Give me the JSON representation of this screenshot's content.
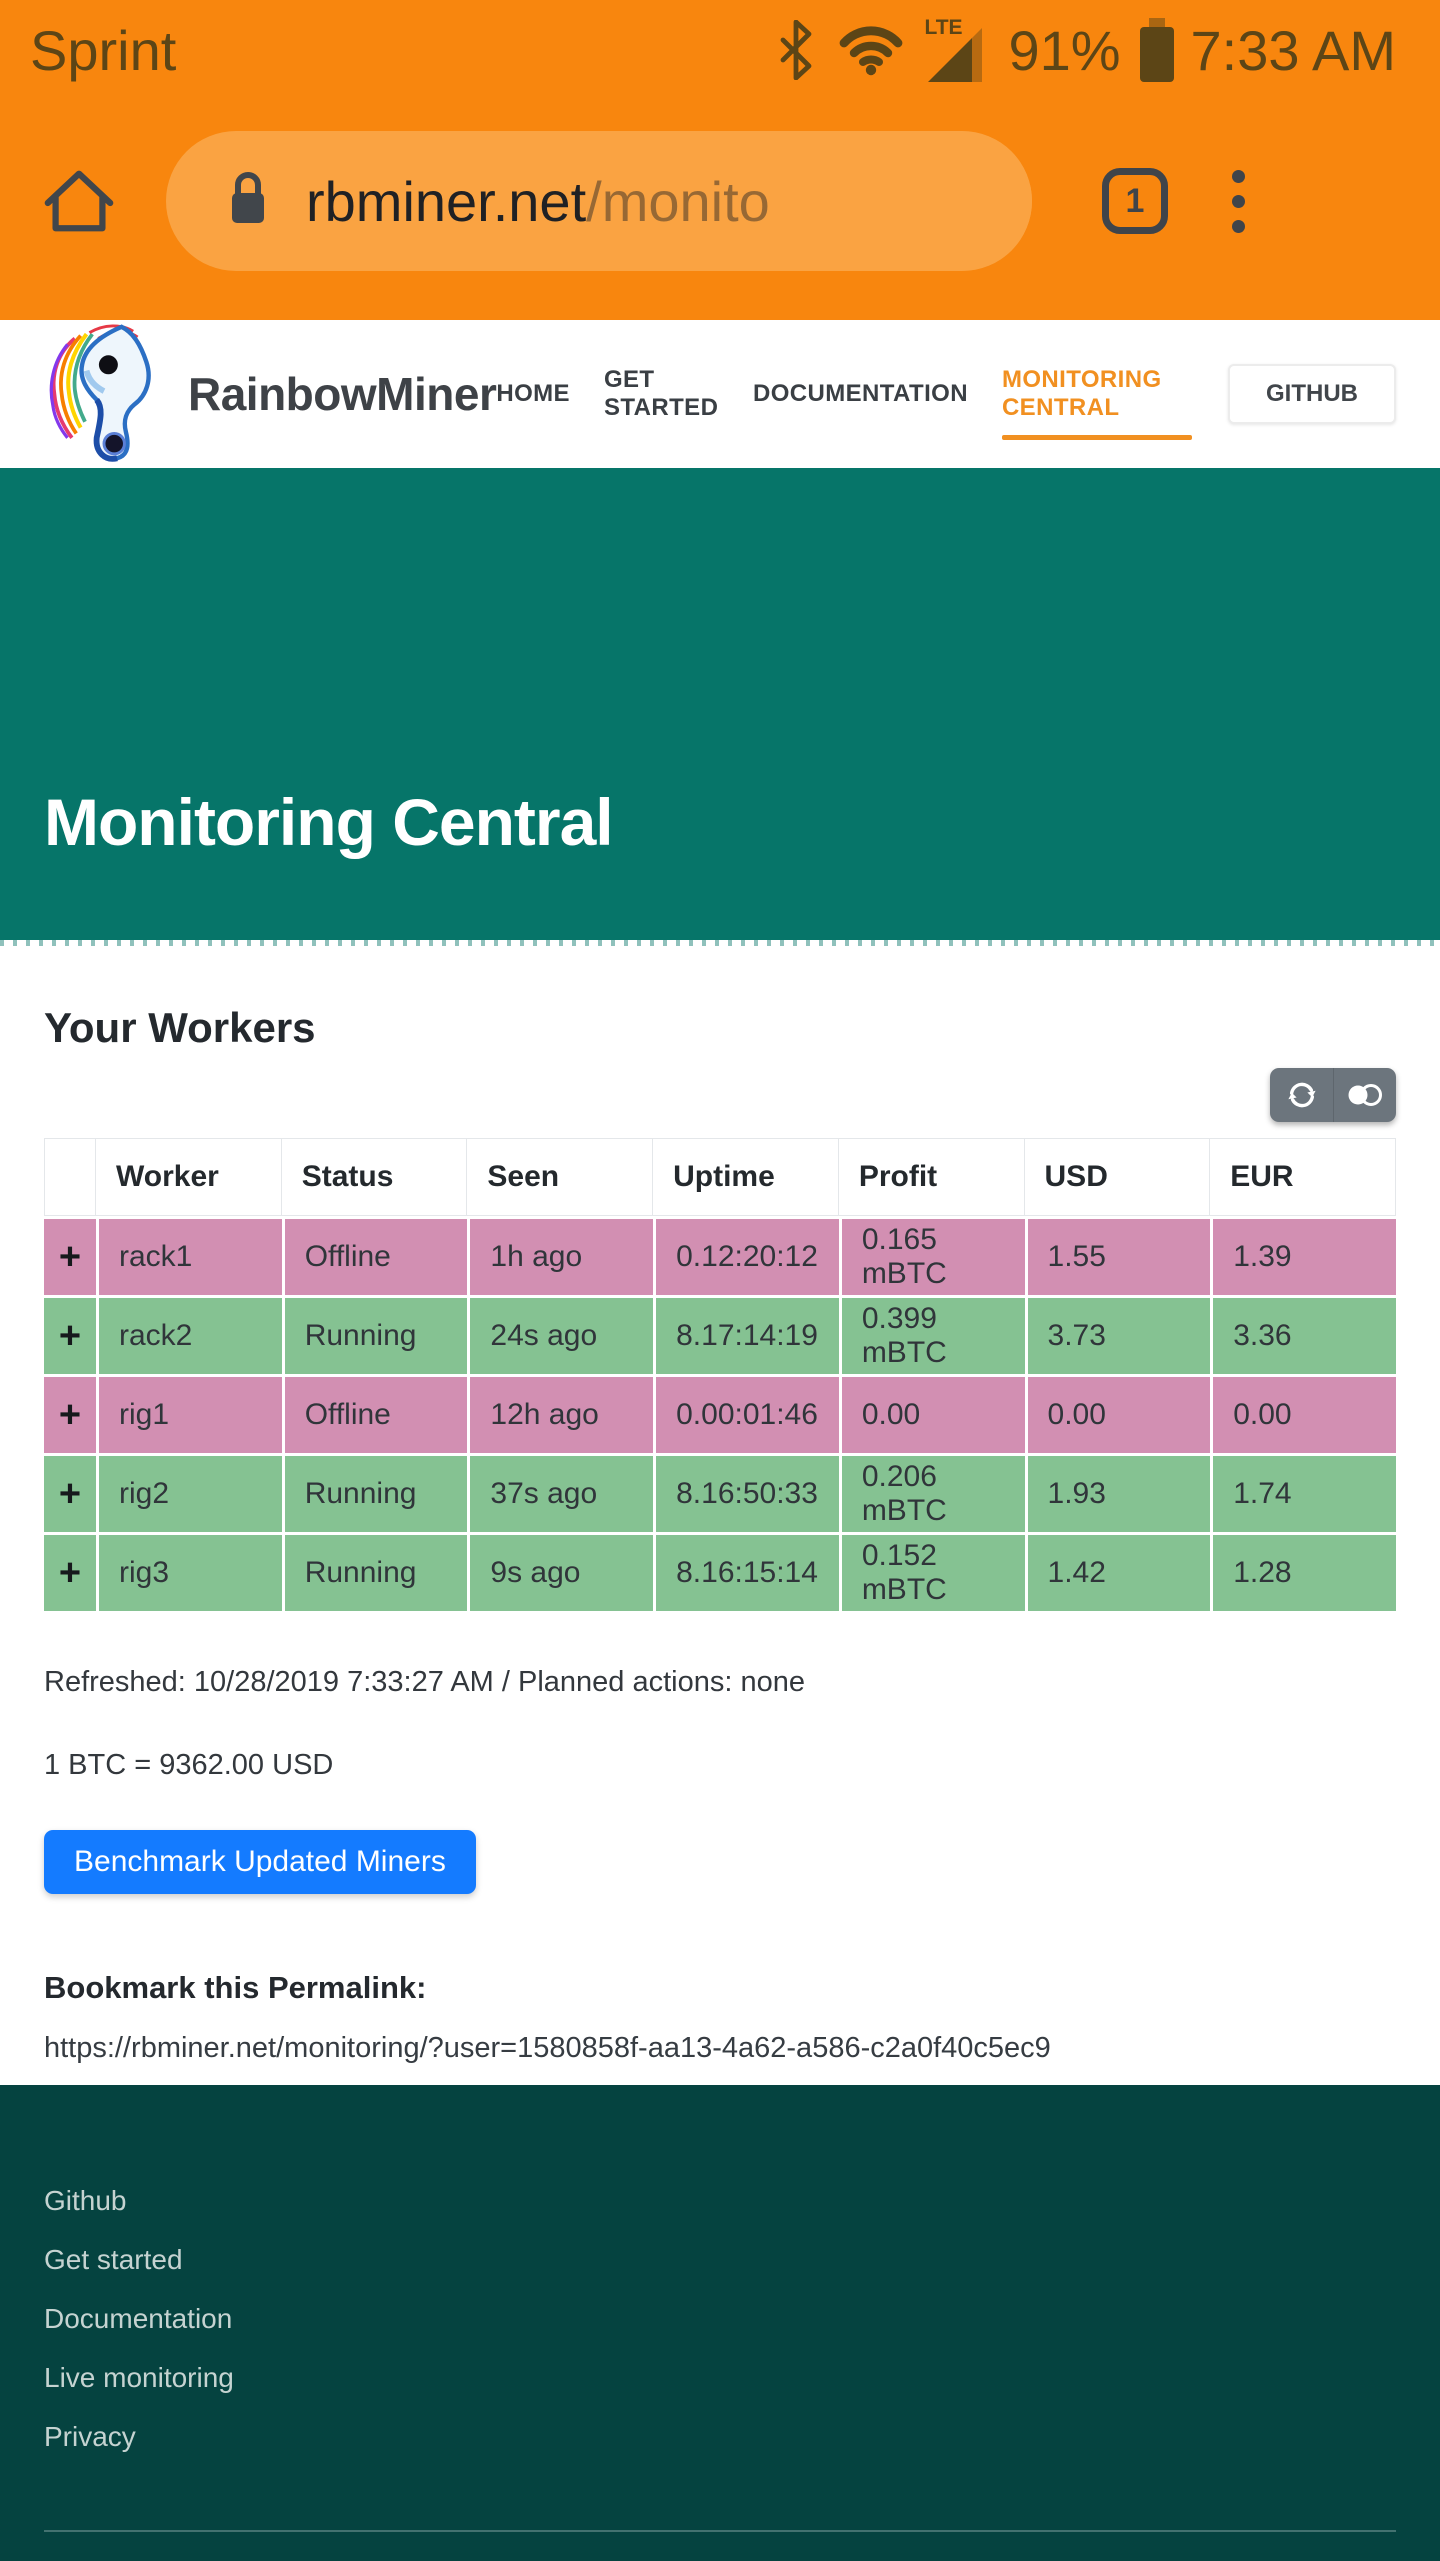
{
  "status_bar": {
    "carrier": "Sprint",
    "network_label": "LTE",
    "battery_pct": "91%",
    "time": "7:33 AM"
  },
  "browser_chrome": {
    "url_domain": "rbminer.net",
    "url_path": "/monito",
    "tab_count": "1"
  },
  "site_header": {
    "brand": "RainbowMiner",
    "nav_items": [
      {
        "label": "HOME",
        "active": false
      },
      {
        "label": "GET STARTED",
        "active": false
      },
      {
        "label": "DOCUMENTATION",
        "active": false
      },
      {
        "label": "MONITORING CENTRAL",
        "active": true
      }
    ],
    "github_label": "GITHUB"
  },
  "hero": {
    "title": "Monitoring Central"
  },
  "main": {
    "section_title": "Your Workers",
    "toolbar_icons": [
      "refresh-icon",
      "toggle-icon"
    ],
    "table": {
      "columns": [
        "",
        "Worker",
        "Status",
        "Seen",
        "Uptime",
        "Profit",
        "USD",
        "EUR"
      ],
      "rows": [
        {
          "expand": "+",
          "worker": "rack1",
          "status": "Offline",
          "seen": "1h ago",
          "uptime": "0.12:20:12",
          "profit": "0.165 mBTC",
          "usd": "1.55",
          "eur": "1.39",
          "state": "offline"
        },
        {
          "expand": "+",
          "worker": "rack2",
          "status": "Running",
          "seen": "24s ago",
          "uptime": "8.17:14:19",
          "profit": "0.399 mBTC",
          "usd": "3.73",
          "eur": "3.36",
          "state": "running"
        },
        {
          "expand": "+",
          "worker": "rig1",
          "status": "Offline",
          "seen": "12h ago",
          "uptime": "0.00:01:46",
          "profit": "0.00",
          "usd": "0.00",
          "eur": "0.00",
          "state": "offline"
        },
        {
          "expand": "+",
          "worker": "rig2",
          "status": "Running",
          "seen": "37s ago",
          "uptime": "8.16:50:33",
          "profit": "0.206 mBTC",
          "usd": "1.93",
          "eur": "1.74",
          "state": "running"
        },
        {
          "expand": "+",
          "worker": "rig3",
          "status": "Running",
          "seen": "9s ago",
          "uptime": "8.16:15:14",
          "profit": "0.152 mBTC",
          "usd": "1.42",
          "eur": "1.28",
          "state": "running"
        }
      ]
    },
    "refreshed_line": "Refreshed: 10/28/2019 7:33:27 AM / Planned actions: none",
    "btc_rate_line": "1 BTC = 9362.00 USD",
    "benchmark_button_label": "Benchmark Updated Miners",
    "permalink_heading": "Bookmark this Permalink:",
    "permalink_url": "https://rbminer.net/monitoring/?user=1580858f-aa13-4a62-a586-c2a0f40c5ec9"
  },
  "footer": {
    "links": [
      "Github",
      "Get started",
      "Documentation",
      "Live monitoring",
      "Privacy"
    ]
  },
  "colors": {
    "chrome_orange": "#f8860e",
    "url_pill_orange": "#faa342",
    "accent_orange": "#f19021",
    "hero_teal": "#067569",
    "footer_teal": "#054340",
    "row_offline_pink": "#d28fb2",
    "row_running_green": "#85c292",
    "primary_blue": "#147bff",
    "toolbar_gray": "#6c757d"
  }
}
